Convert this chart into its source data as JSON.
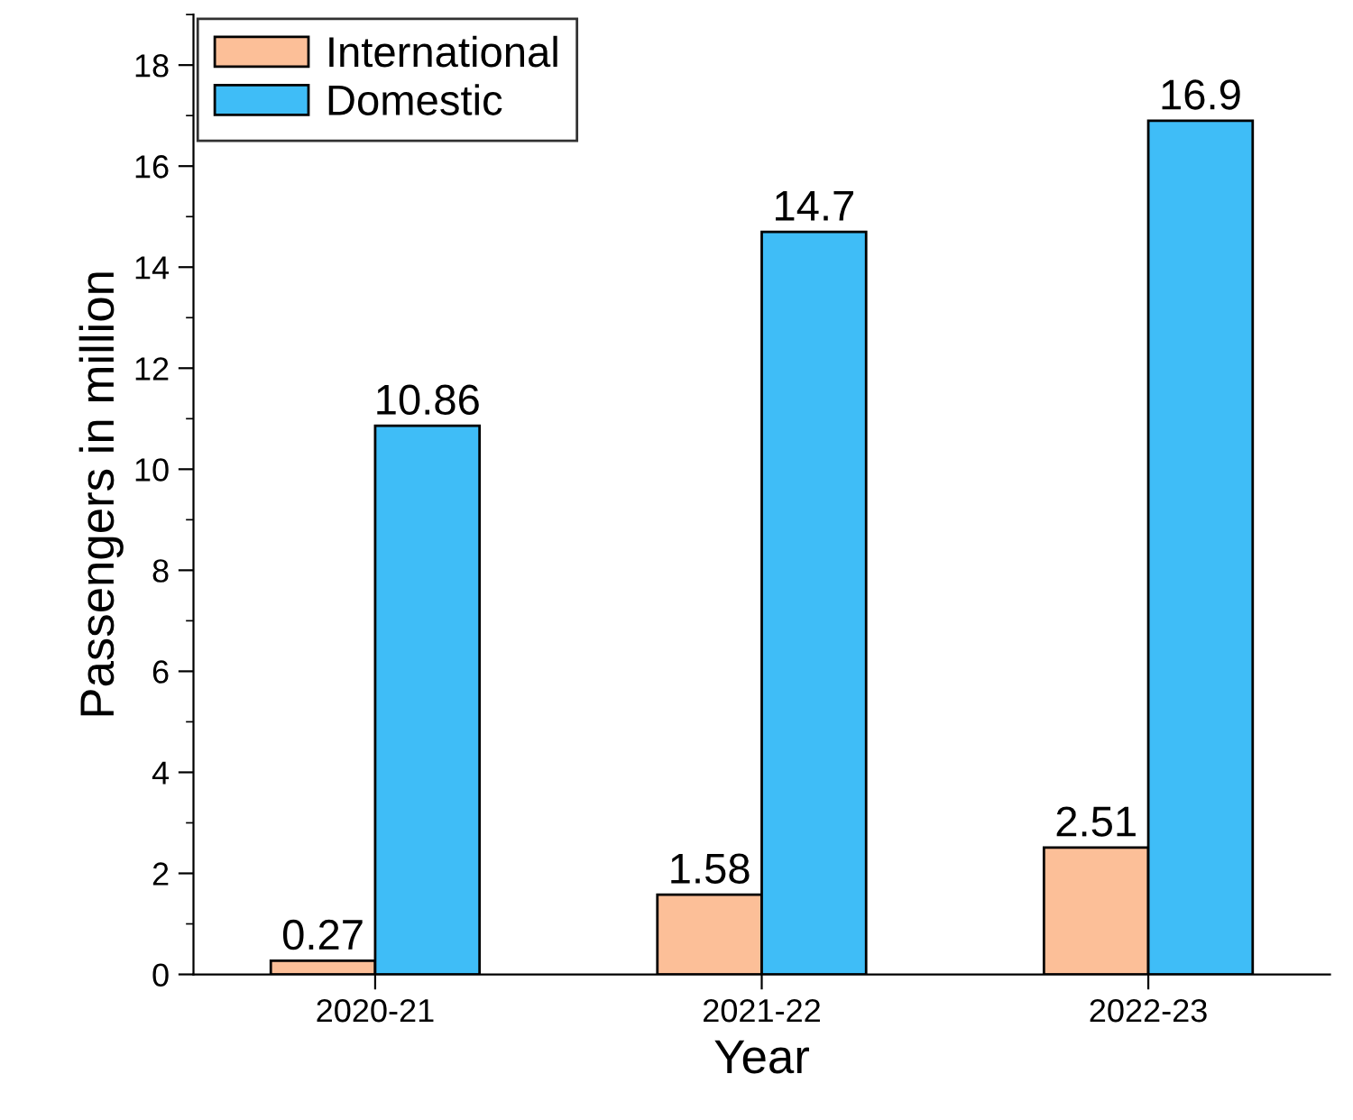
{
  "chart_data": {
    "type": "bar",
    "xlabel": "Year",
    "ylabel": "Passengers in million",
    "categories": [
      "2020-21",
      "2021-22",
      "2022-23"
    ],
    "series": [
      {
        "name": "International",
        "color": "#fcbf98",
        "values": [
          0.27,
          1.58,
          2.51
        ]
      },
      {
        "name": "Domestic",
        "color": "#3fbdf7",
        "values": [
          10.86,
          14.7,
          16.9
        ]
      }
    ],
    "ylim": [
      0,
      19
    ],
    "yticks": [
      0,
      2,
      4,
      6,
      8,
      10,
      12,
      14,
      16,
      18
    ],
    "data_labels": true,
    "legend": "top left",
    "grid": false
  }
}
